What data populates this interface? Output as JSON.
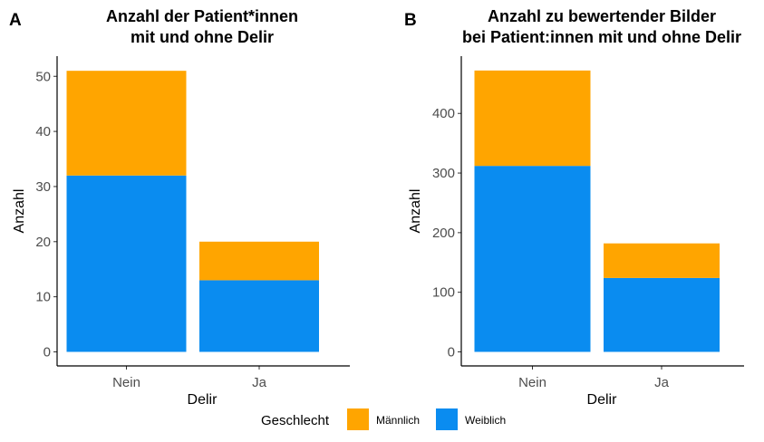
{
  "legend": {
    "title": "Geschlecht",
    "items": [
      {
        "label": "Männlich",
        "color": "#FFA500"
      },
      {
        "label": "Weiblich",
        "color": "#0A8CF0"
      }
    ]
  },
  "chart_data": [
    {
      "type": "bar",
      "stacked": true,
      "panel_label": "A",
      "title": [
        "Anzahl der Patient*innen",
        "mit und ohne Delir"
      ],
      "xlabel": "Delir",
      "ylabel": "Anzahl",
      "categories": [
        "Nein",
        "Ja"
      ],
      "ylim": [
        0,
        53
      ],
      "yticks": [
        0,
        10,
        20,
        30,
        40,
        50
      ],
      "series": [
        {
          "name": "Weiblich",
          "values": [
            32,
            13
          ]
        },
        {
          "name": "Männlich",
          "values": [
            19,
            7
          ]
        }
      ]
    },
    {
      "type": "bar",
      "stacked": true,
      "panel_label": "B",
      "title": [
        "Anzahl zu bewertender Bilder",
        "bei Patient:innen mit und ohne Delir"
      ],
      "xlabel": "Delir",
      "ylabel": "Anzahl",
      "categories": [
        "Nein",
        "Ja"
      ],
      "ylim": [
        0,
        490
      ],
      "yticks": [
        0,
        100,
        200,
        300,
        400
      ],
      "series": [
        {
          "name": "Weiblich",
          "values": [
            312,
            124
          ]
        },
        {
          "name": "Männlich",
          "values": [
            160,
            58
          ]
        }
      ]
    }
  ]
}
